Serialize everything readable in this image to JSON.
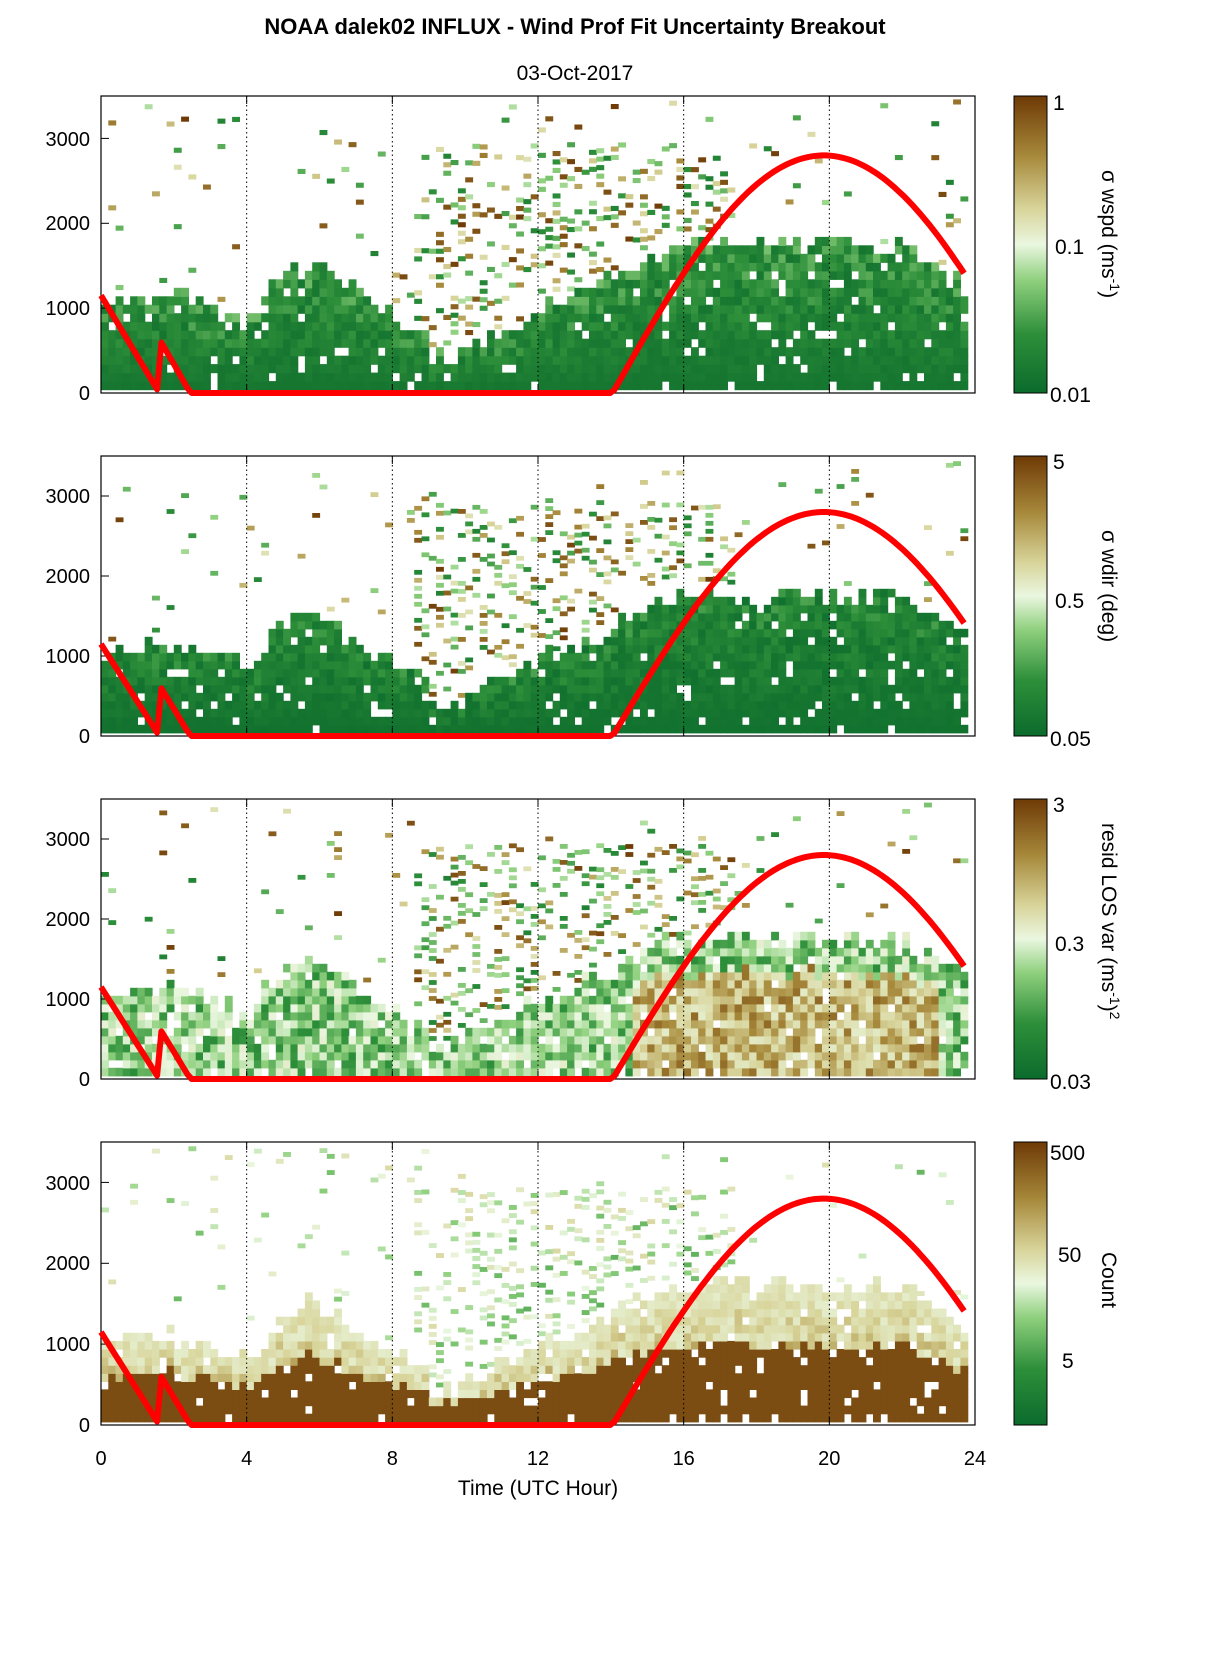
{
  "title": "NOAA dalek02 INFLUX - Wind Prof Fit Uncertainty Breakout",
  "date": "03-Oct-2017",
  "chart_data": [
    {
      "type": "heatmap",
      "title": "",
      "xlabel": "",
      "ylabel": "",
      "xlim": [
        0,
        24
      ],
      "ylim": [
        0,
        3500
      ],
      "xticks": [
        0,
        4,
        8,
        12,
        16,
        20,
        24
      ],
      "yticks": [
        0,
        1000,
        2000,
        3000
      ],
      "grid": "dotted vertical lines at 4-hour intervals",
      "colorbar": {
        "label": "σ wspd (ms-1)",
        "scale": "log",
        "ticks": [
          "1",
          "0.1",
          "0.01"
        ],
        "range": [
          0.01,
          1
        ]
      },
      "overlay": "red solar elevation curve"
    },
    {
      "type": "heatmap",
      "title": "",
      "xlabel": "",
      "ylabel": "",
      "xlim": [
        0,
        24
      ],
      "ylim": [
        0,
        3500
      ],
      "xticks": [
        0,
        4,
        8,
        12,
        16,
        20,
        24
      ],
      "yticks": [
        0,
        1000,
        2000,
        3000
      ],
      "grid": "dotted vertical lines at 4-hour intervals",
      "colorbar": {
        "label": "σ wdir (deg)",
        "scale": "log",
        "ticks": [
          "5",
          "0.5",
          "0.05"
        ],
        "range": [
          0.05,
          5
        ]
      },
      "overlay": "red solar elevation curve"
    },
    {
      "type": "heatmap",
      "title": "",
      "xlabel": "",
      "ylabel": "",
      "xlim": [
        0,
        24
      ],
      "ylim": [
        0,
        3500
      ],
      "xticks": [
        0,
        4,
        8,
        12,
        16,
        20,
        24
      ],
      "yticks": [
        0,
        1000,
        2000,
        3000
      ],
      "grid": "dotted vertical lines at 4-hour intervals",
      "colorbar": {
        "label": "resid LOS var (ms-1)2",
        "scale": "log",
        "ticks": [
          "3",
          "0.3",
          "0.03"
        ],
        "range": [
          0.03,
          3
        ]
      },
      "overlay": "red solar elevation curve"
    },
    {
      "type": "heatmap",
      "title": "",
      "xlabel": "Time (UTC Hour)",
      "ylabel": "",
      "xlim": [
        0,
        24
      ],
      "ylim": [
        0,
        3500
      ],
      "xticks": [
        0,
        4,
        8,
        12,
        16,
        20,
        24
      ],
      "yticks": [
        0,
        1000,
        2000,
        3000
      ],
      "grid": "dotted vertical lines at 4-hour intervals",
      "colorbar": {
        "label": "Count",
        "scale": "log",
        "ticks": [
          "500",
          "50",
          "5"
        ],
        "range": [
          1,
          500
        ]
      },
      "overlay": "red solar elevation curve"
    }
  ],
  "labels": {
    "x_tick_labels": [
      "0",
      "4",
      "8",
      "12",
      "16",
      "20",
      "24"
    ],
    "y_tick_labels": [
      "0",
      "1000",
      "2000",
      "3000"
    ],
    "xlabel": "Time (UTC Hour)",
    "cb1": {
      "ticks": [
        "1",
        "0.1",
        "0.01"
      ],
      "pre": "σ wspd (ms",
      "sup": "-1",
      "post": ")"
    },
    "cb2": {
      "ticks": [
        "5",
        "0.5",
        "0.05"
      ],
      "text": "σ wdir (deg)"
    },
    "cb3": {
      "ticks": [
        "3",
        "0.3",
        "0.03"
      ],
      "pre": "resid LOS var (ms",
      "sup": "-1",
      "mid": ")",
      "sup2": "2"
    },
    "cb4": {
      "ticks": [
        "500",
        "50",
        "5"
      ],
      "text": "Count"
    }
  },
  "colors": {
    "green_dark": "#0b6b2c",
    "green_mid": "#3f9d3f",
    "green_light": "#cfeec0",
    "tan": "#c2b46a",
    "brown_dark": "#6e3a06",
    "red_curve": "#ff0000"
  }
}
